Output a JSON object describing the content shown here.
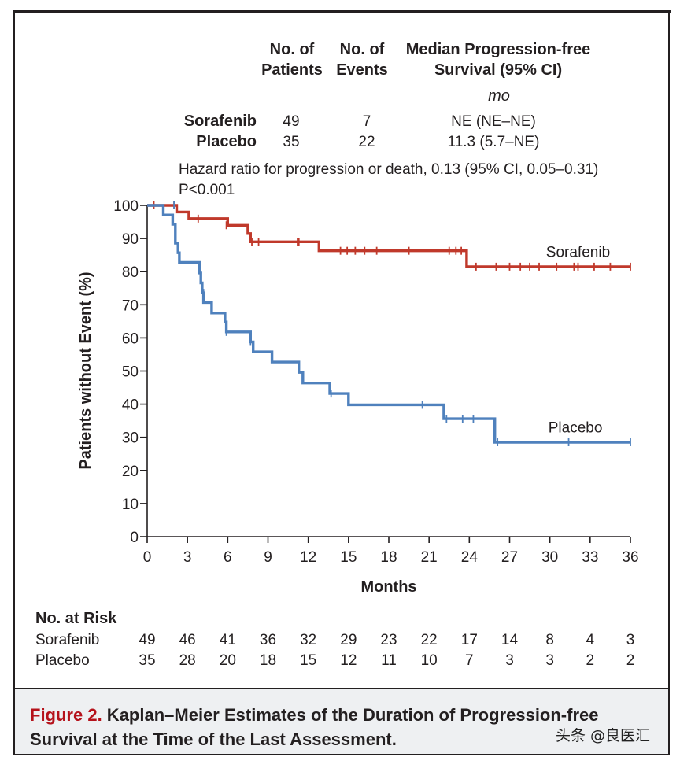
{
  "header": {
    "col_patients": [
      "No. of",
      "Patients"
    ],
    "col_events": [
      "No. of",
      "Events"
    ],
    "col_median": [
      "Median Progression-free",
      "Survival (95% CI)"
    ],
    "unit": "mo"
  },
  "rows": [
    {
      "name": "Sorafenib",
      "patients": "49",
      "events": "7",
      "median": "NE (NE–NE)"
    },
    {
      "name": "Placebo",
      "patients": "35",
      "events": "22",
      "median": "11.3 (5.7–NE)"
    }
  ],
  "hazard_text": "Hazard ratio for progression or death, 0.13 (95% CI, 0.05–0.31)",
  "p_text": "P<0.001",
  "risk": {
    "title": "No. at Risk",
    "rows": [
      {
        "name": "Sorafenib",
        "values": [
          "49",
          "46",
          "41",
          "36",
          "32",
          "29",
          "23",
          "22",
          "17",
          "14",
          "8",
          "4",
          "3"
        ]
      },
      {
        "name": "Placebo",
        "values": [
          "35",
          "28",
          "20",
          "18",
          "15",
          "12",
          "11",
          "10",
          "7",
          "3",
          "3",
          "2",
          "2"
        ]
      }
    ]
  },
  "caption": {
    "label": "Figure 2.",
    "text": " Kaplan–Meier Estimates of the Duration of Progression-free Survival at the Time of the Last Assessment."
  },
  "watermark": "头条 @良医汇",
  "colors": {
    "sorafenib": "#c0392b",
    "placebo": "#4f81bd"
  },
  "chart_data": {
    "type": "line",
    "title": "",
    "xlabel": "Months",
    "ylabel": "Patients without Event (%)",
    "xlim": [
      0,
      36
    ],
    "ylim": [
      0,
      100
    ],
    "xticks": [
      0,
      3,
      6,
      9,
      12,
      15,
      18,
      21,
      24,
      27,
      30,
      33,
      36
    ],
    "yticks": [
      0,
      10,
      20,
      30,
      40,
      50,
      60,
      70,
      80,
      90,
      100
    ],
    "series": [
      {
        "name": "Sorafenib",
        "steps": [
          [
            0,
            100
          ],
          [
            2.2,
            100
          ],
          [
            2.2,
            98
          ],
          [
            3.1,
            98
          ],
          [
            3.1,
            96
          ],
          [
            6,
            96
          ],
          [
            6,
            94
          ],
          [
            7.5,
            94
          ],
          [
            7.5,
            91.5
          ],
          [
            7.7,
            91.5
          ],
          [
            7.7,
            89
          ],
          [
            12.8,
            89
          ],
          [
            12.8,
            86.3
          ],
          [
            23.8,
            86.3
          ],
          [
            23.8,
            81.5
          ],
          [
            36,
            81.5
          ]
        ],
        "censored": [
          [
            0.5,
            100
          ],
          [
            2,
            100
          ],
          [
            3.8,
            96
          ],
          [
            5.9,
            94
          ],
          [
            7.8,
            89
          ],
          [
            8.3,
            89
          ],
          [
            11.2,
            89
          ],
          [
            11.3,
            89
          ],
          [
            14.4,
            86.3
          ],
          [
            14.9,
            86.3
          ],
          [
            15.5,
            86.3
          ],
          [
            16.2,
            86.3
          ],
          [
            17.1,
            86.3
          ],
          [
            19.5,
            86.3
          ],
          [
            22.5,
            86.3
          ],
          [
            23,
            86.3
          ],
          [
            23.4,
            86.3
          ],
          [
            24.5,
            81.5
          ],
          [
            26,
            81.5
          ],
          [
            27,
            81.5
          ],
          [
            27.8,
            81.5
          ],
          [
            28.5,
            81.5
          ],
          [
            29.2,
            81.5
          ],
          [
            30.5,
            81.5
          ],
          [
            31.8,
            81.5
          ],
          [
            32.1,
            81.5
          ],
          [
            33.3,
            81.5
          ],
          [
            34.5,
            81.5
          ],
          [
            36,
            81.5
          ]
        ]
      },
      {
        "name": "Placebo",
        "steps": [
          [
            0,
            100
          ],
          [
            1.2,
            100
          ],
          [
            1.2,
            97.1
          ],
          [
            1.9,
            97.1
          ],
          [
            1.9,
            94.3
          ],
          [
            2.1,
            94.3
          ],
          [
            2.1,
            88.6
          ],
          [
            2.3,
            88.6
          ],
          [
            2.3,
            85.7
          ],
          [
            2.4,
            85.7
          ],
          [
            2.4,
            82.8
          ],
          [
            3.9,
            82.8
          ],
          [
            3.9,
            79.6
          ],
          [
            4,
            79.6
          ],
          [
            4,
            76.6
          ],
          [
            4.1,
            76.6
          ],
          [
            4.1,
            73.6
          ],
          [
            4.2,
            73.6
          ],
          [
            4.2,
            70.7
          ],
          [
            4.8,
            70.7
          ],
          [
            4.8,
            67.5
          ],
          [
            5.8,
            67.5
          ],
          [
            5.8,
            64.8
          ],
          [
            5.9,
            64.8
          ],
          [
            5.9,
            61.8
          ],
          [
            7.7,
            61.8
          ],
          [
            7.7,
            58.8
          ],
          [
            7.9,
            58.8
          ],
          [
            7.9,
            55.8
          ],
          [
            9.3,
            55.8
          ],
          [
            9.3,
            52.7
          ],
          [
            11.3,
            52.7
          ],
          [
            11.3,
            49.6
          ],
          [
            11.6,
            49.6
          ],
          [
            11.6,
            46.4
          ],
          [
            13.6,
            46.4
          ],
          [
            13.6,
            43.2
          ],
          [
            15,
            43.2
          ],
          [
            15,
            39.8
          ],
          [
            22.1,
            39.8
          ],
          [
            22.1,
            35.6
          ],
          [
            25.9,
            35.6
          ],
          [
            25.9,
            28.5
          ],
          [
            36,
            28.5
          ]
        ],
        "censored": [
          [
            2,
            100
          ],
          [
            4.2,
            73.6
          ],
          [
            5.9,
            61.8
          ],
          [
            7.7,
            58.8
          ],
          [
            13.7,
            43.2
          ],
          [
            20.5,
            39.8
          ],
          [
            22.3,
            35.6
          ],
          [
            23.5,
            35.6
          ],
          [
            24.3,
            35.6
          ],
          [
            26.1,
            28.5
          ],
          [
            31.4,
            28.5
          ],
          [
            36,
            28.5
          ]
        ]
      }
    ],
    "labels": [
      {
        "series": "Sorafenib",
        "text": "Sorafenib",
        "x": 32.1,
        "y": 84.5
      },
      {
        "series": "Placebo",
        "text": "Placebo",
        "x": 31.9,
        "y": 31.5
      }
    ]
  }
}
